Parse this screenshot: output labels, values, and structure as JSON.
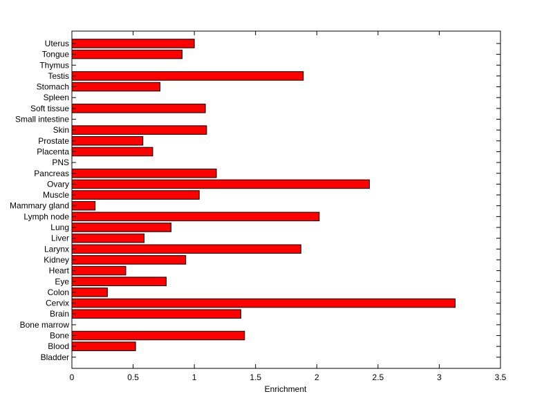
{
  "chart_data": {
    "type": "bar",
    "orientation": "horizontal",
    "title": "",
    "xlabel": "Enrichment",
    "ylabel": "",
    "xlim": [
      0,
      3.5
    ],
    "xticks": [
      "0",
      "0.5",
      "1",
      "1.5",
      "2",
      "2.5",
      "3",
      "3.5"
    ],
    "grid": false,
    "bar_color": "#ff0000",
    "categories": [
      "Bladder",
      "Blood",
      "Bone",
      "Bone marrow",
      "Brain",
      "Cervix",
      "Colon",
      "Eye",
      "Heart",
      "Kidney",
      "Larynx",
      "Liver",
      "Lung",
      "Lymph node",
      "Mammary gland",
      "Muscle",
      "Ovary",
      "Pancreas",
      "PNS",
      "Placenta",
      "Prostate",
      "Skin",
      "Small intestine",
      "Soft tissue",
      "Spleen",
      "Stomach",
      "Testis",
      "Thymus",
      "Tongue",
      "Uterus"
    ],
    "values": [
      0,
      0.52,
      1.41,
      0,
      1.38,
      3.13,
      0.29,
      0.77,
      0.44,
      0.93,
      1.87,
      0.59,
      0.81,
      2.02,
      0.19,
      1.04,
      2.43,
      1.18,
      0,
      0.66,
      0.58,
      1.1,
      0,
      1.09,
      0,
      0.72,
      1.89,
      0,
      0.9,
      1.0
    ]
  }
}
